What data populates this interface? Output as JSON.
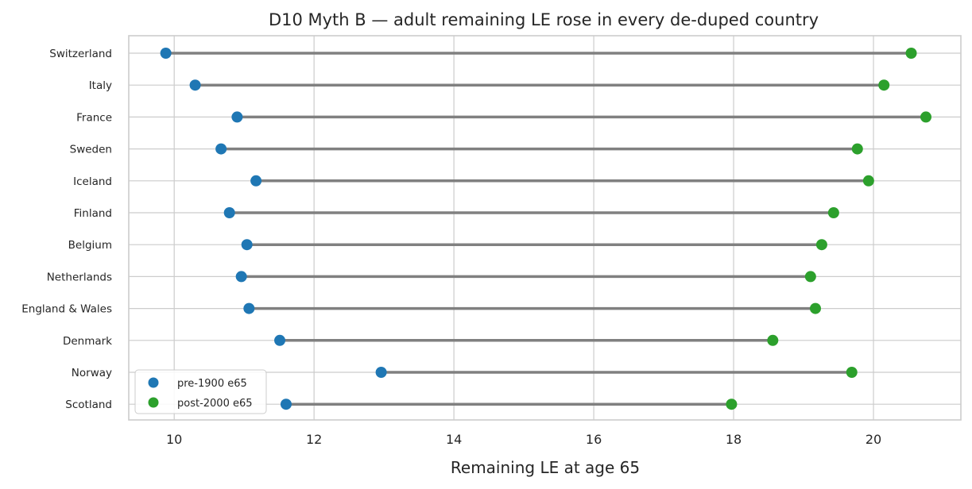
{
  "chart_data": {
    "type": "dumbbell",
    "title": "D10 Myth B — adult remaining LE rose in every de-duped country",
    "xlabel": "Remaining LE at age 65",
    "ylabel": "",
    "xlim": [
      9.35,
      21.25
    ],
    "xticks": [
      10,
      12,
      14,
      16,
      18,
      20
    ],
    "grid": true,
    "legend_position": "lower-left",
    "connector_color": "#808080",
    "categories": [
      "Switzerland",
      "Italy",
      "France",
      "Sweden",
      "Iceland",
      "Finland",
      "Belgium",
      "Netherlands",
      "England & Wales",
      "Denmark",
      "Norway",
      "Scotland"
    ],
    "series": [
      {
        "name": "pre-1900 e65",
        "color": "#1f77b4",
        "values": [
          9.88,
          10.3,
          10.9,
          10.67,
          11.17,
          10.79,
          11.04,
          10.96,
          11.07,
          11.51,
          12.96,
          11.6
        ]
      },
      {
        "name": "post-2000 e65",
        "color": "#2ca02c",
        "values": [
          20.54,
          20.15,
          20.75,
          19.77,
          19.93,
          19.43,
          19.26,
          19.1,
          19.17,
          18.56,
          19.69,
          17.97
        ]
      }
    ]
  }
}
